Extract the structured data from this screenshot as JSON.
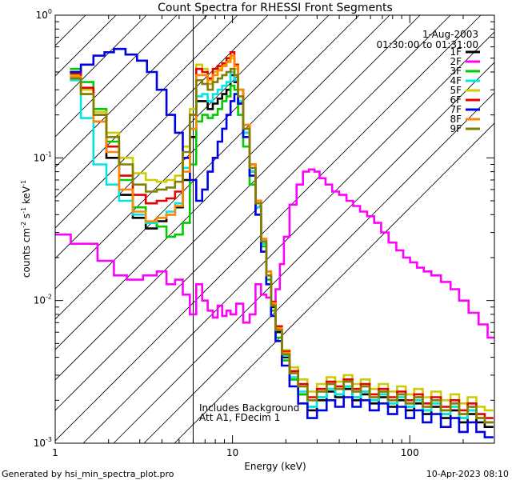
{
  "chart_data": {
    "type": "line",
    "title": "Count Spectra for RHESSI Front Segments",
    "xlabel": "Energy (keV)",
    "ylabel_parts": [
      "counts cm",
      "-2",
      " s",
      "-1",
      " keV",
      "-1"
    ],
    "xscale": "log",
    "yscale": "log",
    "xlim": [
      1,
      300
    ],
    "ylim": [
      0.001,
      1
    ],
    "x_ticks": [
      {
        "value": 1,
        "label": "1"
      },
      {
        "value": 10,
        "label": "10"
      },
      {
        "value": 100,
        "label": "100"
      }
    ],
    "y_ticks": [
      {
        "value": 1,
        "base": "10",
        "exp": "0"
      },
      {
        "value": 0.1,
        "base": "10",
        "exp": "-1"
      },
      {
        "value": 0.01,
        "base": "10",
        "exp": "-2"
      },
      {
        "value": 0.001,
        "base": "10",
        "exp": "-3"
      }
    ],
    "shaded_region": {
      "x_from": 1,
      "x_to": 6
    },
    "header": {
      "date": "1-Aug-2003",
      "time_range": "01:30:00 to 01:31:00"
    },
    "notes": [
      "Includes Background",
      "Att A1, FDecim 1"
    ],
    "footer_left": "Generated by hsi_min_spectra_plot.pro",
    "footer_right": "10-Apr-2023 08:10",
    "series": [
      {
        "name": "1F",
        "color": "#000000",
        "x": [
          1.3,
          1.5,
          1.8,
          2.1,
          2.5,
          3.0,
          3.5,
          4.0,
          4.5,
          5.0,
          5.5,
          6.0,
          6.5,
          7.0,
          7.5,
          8.0,
          8.5,
          9.0,
          9.5,
          10,
          10.5,
          11,
          12,
          13,
          14,
          15,
          16,
          17,
          18,
          20,
          22,
          25,
          28,
          32,
          36,
          40,
          45,
          50,
          56,
          63,
          71,
          80,
          90,
          100,
          112,
          125,
          140,
          160,
          180,
          200,
          225,
          250,
          280
        ],
        "y": [
          0.4,
          0.3,
          0.18,
          0.1,
          0.055,
          0.038,
          0.032,
          0.036,
          0.04,
          0.045,
          0.07,
          0.14,
          0.25,
          0.25,
          0.22,
          0.24,
          0.26,
          0.28,
          0.3,
          0.38,
          0.34,
          0.24,
          0.15,
          0.08,
          0.045,
          0.025,
          0.015,
          0.009,
          0.006,
          0.004,
          0.0028,
          0.0022,
          0.0017,
          0.002,
          0.0023,
          0.0021,
          0.0024,
          0.002,
          0.0022,
          0.0019,
          0.0021,
          0.0018,
          0.002,
          0.0017,
          0.0019,
          0.0016,
          0.0018,
          0.0015,
          0.0017,
          0.0014,
          0.0016,
          0.0014,
          0.0013
        ]
      },
      {
        "name": "2F",
        "color": "#ff00ff",
        "x": [
          1.0,
          1.5,
          2.0,
          2.3,
          2.8,
          3.5,
          4.0,
          4.5,
          5.0,
          5.5,
          6.0,
          6.5,
          7.0,
          7.5,
          8.0,
          8.5,
          9.0,
          9.5,
          10,
          11,
          12,
          13,
          14,
          15,
          16,
          17,
          18,
          19,
          20,
          22,
          24,
          26,
          28,
          30,
          32,
          35,
          38,
          42,
          46,
          50,
          55,
          60,
          66,
          72,
          80,
          88,
          96,
          105,
          115,
          125,
          140,
          160,
          180,
          200,
          230,
          260,
          290
        ],
        "y": [
          0.029,
          0.025,
          0.019,
          0.015,
          0.014,
          0.015,
          0.016,
          0.013,
          0.014,
          0.011,
          0.008,
          0.013,
          0.01,
          0.0085,
          0.0076,
          0.0092,
          0.0078,
          0.0085,
          0.008,
          0.0095,
          0.007,
          0.008,
          0.013,
          0.011,
          0.0105,
          0.0095,
          0.012,
          0.018,
          0.028,
          0.047,
          0.065,
          0.08,
          0.083,
          0.08,
          0.072,
          0.065,
          0.058,
          0.055,
          0.05,
          0.046,
          0.042,
          0.039,
          0.035,
          0.03,
          0.0255,
          0.0225,
          0.02,
          0.0185,
          0.017,
          0.016,
          0.015,
          0.0135,
          0.012,
          0.01,
          0.0082,
          0.0068,
          0.0055
        ]
      },
      {
        "name": "3F",
        "color": "#00cc00",
        "x": [
          1.3,
          1.5,
          1.8,
          2.1,
          2.5,
          3.0,
          3.5,
          4.0,
          4.5,
          5.0,
          5.5,
          6.0,
          6.5,
          7.0,
          7.5,
          8.0,
          8.5,
          9.0,
          9.5,
          10,
          10.5,
          11,
          12,
          13,
          14,
          15,
          16,
          17,
          18,
          20,
          22,
          25,
          28,
          32,
          36,
          40,
          45,
          50,
          56,
          63,
          71,
          80,
          90,
          100,
          112,
          125,
          140,
          160,
          180,
          200,
          225,
          250,
          280
        ],
        "y": [
          0.42,
          0.34,
          0.22,
          0.13,
          0.07,
          0.045,
          0.035,
          0.033,
          0.028,
          0.029,
          0.035,
          0.09,
          0.18,
          0.2,
          0.19,
          0.2,
          0.22,
          0.25,
          0.27,
          0.32,
          0.3,
          0.2,
          0.12,
          0.065,
          0.04,
          0.024,
          0.014,
          0.0085,
          0.0055,
          0.0038,
          0.0028,
          0.0022,
          0.0018,
          0.0021,
          0.0024,
          0.0022,
          0.0025,
          0.0021,
          0.0023,
          0.002,
          0.0022,
          0.0019,
          0.0021,
          0.0018,
          0.002,
          0.0017,
          0.0019,
          0.0016,
          0.0018,
          0.0015,
          0.0017,
          0.0015,
          0.0014
        ]
      },
      {
        "name": "4F",
        "color": "#00e5e5",
        "x": [
          1.3,
          1.5,
          1.8,
          2.1,
          2.5,
          3.0,
          3.5,
          4.0,
          4.5,
          5.0,
          5.5,
          6.0,
          6.5,
          7.0,
          7.5,
          8.0,
          8.5,
          9.0,
          9.5,
          10,
          10.5,
          11,
          12,
          13,
          14,
          15,
          16,
          17,
          18,
          20,
          22,
          25,
          28,
          32,
          36,
          40,
          45,
          50,
          56,
          63,
          71,
          80,
          90,
          100,
          112,
          125,
          140,
          160,
          180,
          200,
          225,
          250,
          280
        ],
        "y": [
          0.35,
          0.19,
          0.09,
          0.065,
          0.05,
          0.04,
          0.035,
          0.038,
          0.042,
          0.048,
          0.085,
          0.16,
          0.27,
          0.28,
          0.25,
          0.28,
          0.3,
          0.32,
          0.34,
          0.4,
          0.35,
          0.25,
          0.15,
          0.08,
          0.045,
          0.025,
          0.015,
          0.0092,
          0.0062,
          0.0041,
          0.0029,
          0.0023,
          0.0018,
          0.0021,
          0.0024,
          0.0022,
          0.0025,
          0.0021,
          0.0023,
          0.002,
          0.0022,
          0.0019,
          0.0021,
          0.0018,
          0.002,
          0.0017,
          0.0019,
          0.0016,
          0.0018,
          0.0015,
          0.0017,
          0.0015,
          0.0014
        ]
      },
      {
        "name": "5F",
        "color": "#cccc00",
        "x": [
          1.3,
          1.5,
          1.8,
          2.1,
          2.5,
          3.0,
          3.5,
          4.0,
          4.5,
          5.0,
          5.5,
          6.0,
          6.5,
          7.0,
          7.5,
          8.0,
          8.5,
          9.0,
          9.5,
          10,
          10.5,
          11,
          12,
          13,
          14,
          15,
          16,
          17,
          18,
          20,
          22,
          25,
          28,
          32,
          36,
          40,
          45,
          50,
          56,
          63,
          71,
          80,
          90,
          100,
          112,
          125,
          140,
          160,
          180,
          200,
          225,
          250,
          280
        ],
        "y": [
          0.38,
          0.3,
          0.21,
          0.15,
          0.1,
          0.078,
          0.07,
          0.068,
          0.07,
          0.075,
          0.12,
          0.22,
          0.45,
          0.42,
          0.35,
          0.4,
          0.42,
          0.45,
          0.48,
          0.5,
          0.42,
          0.3,
          0.17,
          0.09,
          0.05,
          0.027,
          0.016,
          0.0098,
          0.0066,
          0.0045,
          0.0034,
          0.0028,
          0.0023,
          0.0026,
          0.0029,
          0.0027,
          0.003,
          0.0026,
          0.0028,
          0.0024,
          0.0026,
          0.0023,
          0.0025,
          0.0022,
          0.0024,
          0.0021,
          0.0023,
          0.002,
          0.0022,
          0.0019,
          0.0021,
          0.0018,
          0.0017
        ]
      },
      {
        "name": "6F",
        "color": "#e60000",
        "x": [
          1.3,
          1.5,
          1.8,
          2.1,
          2.5,
          3.0,
          3.5,
          4.0,
          4.5,
          5.0,
          5.5,
          6.0,
          6.5,
          7.0,
          7.5,
          8.0,
          8.5,
          9.0,
          9.5,
          10,
          10.5,
          11,
          12,
          13,
          14,
          15,
          16,
          17,
          18,
          20,
          22,
          25,
          28,
          32,
          36,
          40,
          45,
          50,
          56,
          63,
          71,
          80,
          90,
          100,
          112,
          125,
          140,
          160,
          180,
          200,
          225,
          250,
          280
        ],
        "y": [
          0.39,
          0.31,
          0.2,
          0.12,
          0.075,
          0.055,
          0.048,
          0.05,
          0.052,
          0.058,
          0.1,
          0.2,
          0.42,
          0.4,
          0.36,
          0.42,
          0.44,
          0.46,
          0.5,
          0.55,
          0.45,
          0.3,
          0.17,
          0.09,
          0.05,
          0.027,
          0.016,
          0.0098,
          0.0066,
          0.0044,
          0.0032,
          0.0026,
          0.0021,
          0.0024,
          0.0027,
          0.0025,
          0.0028,
          0.0024,
          0.0026,
          0.0022,
          0.0024,
          0.0021,
          0.0023,
          0.002,
          0.0022,
          0.0019,
          0.0021,
          0.0018,
          0.002,
          0.0017,
          0.0019,
          0.0016,
          0.0015
        ]
      },
      {
        "name": "7F",
        "color": "#0000e6",
        "x": [
          1.3,
          1.5,
          1.8,
          2.0,
          2.3,
          2.7,
          3.1,
          3.5,
          4.0,
          4.5,
          5.0,
          5.5,
          6.0,
          6.5,
          7.0,
          7.5,
          8.0,
          8.5,
          9.0,
          9.5,
          10,
          10.5,
          11,
          12,
          13,
          14,
          15,
          16,
          17,
          18,
          20,
          22,
          25,
          28,
          32,
          36,
          40,
          45,
          50,
          56,
          63,
          71,
          80,
          90,
          100,
          112,
          125,
          140,
          160,
          180,
          200,
          225,
          250,
          280
        ],
        "y": [
          0.4,
          0.45,
          0.52,
          0.55,
          0.58,
          0.53,
          0.48,
          0.4,
          0.3,
          0.2,
          0.15,
          0.1,
          0.07,
          0.05,
          0.06,
          0.08,
          0.1,
          0.13,
          0.16,
          0.2,
          0.25,
          0.28,
          0.24,
          0.14,
          0.075,
          0.04,
          0.022,
          0.013,
          0.0078,
          0.0052,
          0.0035,
          0.0025,
          0.0019,
          0.0015,
          0.0017,
          0.002,
          0.0018,
          0.0021,
          0.0018,
          0.002,
          0.0017,
          0.0019,
          0.0016,
          0.0018,
          0.0015,
          0.0017,
          0.0014,
          0.0016,
          0.0013,
          0.0015,
          0.0012,
          0.0014,
          0.0012,
          0.0011
        ]
      },
      {
        "name": "8F",
        "color": "#ff8800",
        "x": [
          1.3,
          1.5,
          1.8,
          2.1,
          2.5,
          3.0,
          3.5,
          4.0,
          4.5,
          5.0,
          5.5,
          6.0,
          6.5,
          7.0,
          7.5,
          8.0,
          8.5,
          9.0,
          9.5,
          10,
          10.5,
          11,
          12,
          13,
          14,
          15,
          16,
          17,
          18,
          20,
          22,
          25,
          28,
          32,
          36,
          40,
          45,
          50,
          56,
          63,
          71,
          80,
          90,
          100,
          112,
          125,
          140,
          160,
          180,
          200,
          225,
          250,
          280
        ],
        "y": [
          0.37,
          0.28,
          0.18,
          0.11,
          0.06,
          0.042,
          0.036,
          0.038,
          0.04,
          0.046,
          0.08,
          0.16,
          0.38,
          0.38,
          0.33,
          0.38,
          0.41,
          0.44,
          0.47,
          0.52,
          0.44,
          0.3,
          0.17,
          0.09,
          0.05,
          0.027,
          0.016,
          0.0096,
          0.0064,
          0.0043,
          0.0031,
          0.0025,
          0.002,
          0.0023,
          0.0026,
          0.0024,
          0.0027,
          0.0023,
          0.0025,
          0.0021,
          0.0023,
          0.002,
          0.0022,
          0.0019,
          0.0021,
          0.0018,
          0.002,
          0.0017,
          0.0019,
          0.0016,
          0.0018,
          0.0015,
          0.0014
        ]
      },
      {
        "name": "9F",
        "color": "#808000",
        "x": [
          1.3,
          1.5,
          1.8,
          2.1,
          2.5,
          3.0,
          3.5,
          4.0,
          4.5,
          5.0,
          5.5,
          6.0,
          6.5,
          7.0,
          7.5,
          8.0,
          8.5,
          9.0,
          9.5,
          10,
          10.5,
          11,
          12,
          13,
          14,
          15,
          16,
          17,
          18,
          20,
          22,
          25,
          28,
          32,
          36,
          40,
          45,
          50,
          56,
          63,
          71,
          80,
          90,
          100,
          112,
          125,
          140,
          160,
          180,
          200,
          225,
          250,
          280
        ],
        "y": [
          0.36,
          0.28,
          0.2,
          0.14,
          0.09,
          0.065,
          0.058,
          0.06,
          0.062,
          0.068,
          0.11,
          0.2,
          0.35,
          0.33,
          0.3,
          0.34,
          0.36,
          0.38,
          0.4,
          0.42,
          0.38,
          0.27,
          0.16,
          0.085,
          0.048,
          0.026,
          0.015,
          0.0092,
          0.0062,
          0.0042,
          0.0031,
          0.0025,
          0.002,
          0.0023,
          0.0026,
          0.0024,
          0.0027,
          0.0023,
          0.0025,
          0.0021,
          0.0023,
          0.002,
          0.0022,
          0.0019,
          0.0021,
          0.0018,
          0.002,
          0.0017,
          0.0019,
          0.0016,
          0.0018,
          0.0015,
          0.0014
        ]
      }
    ]
  }
}
